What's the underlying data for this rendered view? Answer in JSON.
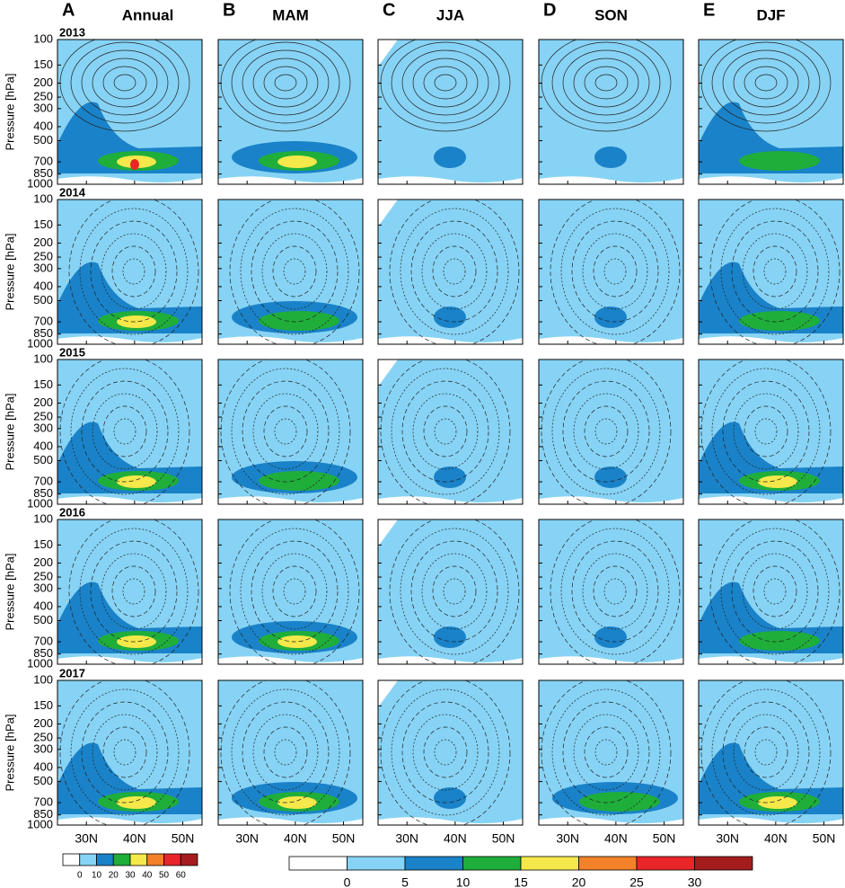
{
  "figure": {
    "columns": [
      {
        "letter": "A",
        "title": "Annual"
      },
      {
        "letter": "B",
        "title": "MAM"
      },
      {
        "letter": "C",
        "title": "JJA"
      },
      {
        "letter": "D",
        "title": "SON"
      },
      {
        "letter": "E",
        "title": "DJF"
      }
    ],
    "rows": [
      "2013",
      "2014",
      "2015",
      "2016",
      "2017"
    ],
    "y_axis": {
      "label": "Pressure [hPa]",
      "log": true,
      "reversed": true,
      "ylim": [
        100,
        1000
      ],
      "yticks": [
        100,
        150,
        200,
        250,
        300,
        400,
        500,
        700,
        850,
        1000
      ]
    },
    "x_axis": {
      "xlim": [
        24,
        54
      ],
      "xticks": [
        {
          "value": 30,
          "label": "30N"
        },
        {
          "value": 40,
          "label": "40N"
        },
        {
          "value": 50,
          "label": "50N"
        }
      ]
    },
    "colorbars": [
      {
        "levels": [
          0,
          10,
          20,
          30,
          40,
          50,
          60
        ],
        "colors": [
          "#ffffff",
          "#87d3f5",
          "#1a82c8",
          "#1fae3a",
          "#f5e84a",
          "#f2812a",
          "#e8262a",
          "#a51c1c"
        ]
      },
      {
        "levels": [
          0,
          5,
          10,
          15,
          20,
          25,
          30
        ],
        "colors": [
          "#ffffff",
          "#87d3f5",
          "#1a82c8",
          "#1fae3a",
          "#f5e84a",
          "#f2812a",
          "#e8262a",
          "#a51c1c"
        ]
      }
    ]
  }
}
